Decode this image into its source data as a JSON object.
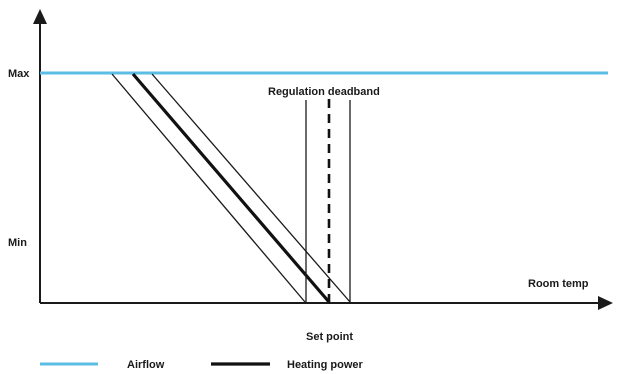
{
  "axes": {
    "y_max_label": "Max",
    "y_min_label": "Min",
    "x_label": "Room temp"
  },
  "annotations": {
    "deadband_label": "Regulation deadband",
    "setpoint_label": "Set point"
  },
  "legend": {
    "airflow_label": "Airflow",
    "heating_label": "Heating power"
  },
  "colors": {
    "airflow": "#5bbde4",
    "heating": "#111111",
    "axis": "#1a1a1a"
  }
}
